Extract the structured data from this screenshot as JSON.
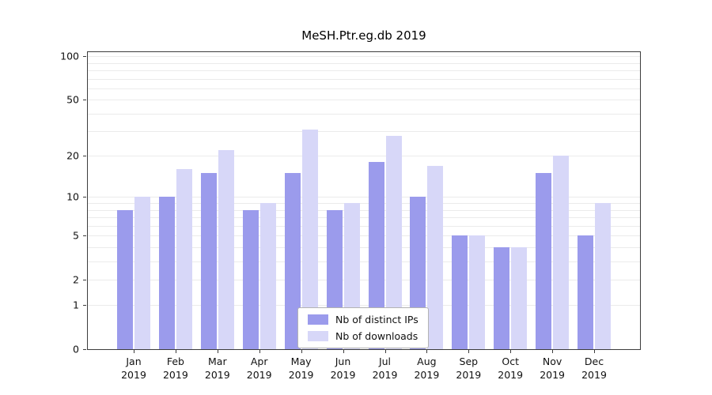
{
  "title": "MeSH.Ptr.eg.db 2019",
  "chart_data": {
    "type": "bar",
    "title": "MeSH.Ptr.eg.db 2019",
    "y_scale": "log10(1+v)",
    "grid": true,
    "legend_position": "lower center",
    "x_year": "2019",
    "categories": [
      "Jan",
      "Feb",
      "Mar",
      "Apr",
      "May",
      "Jun",
      "Jul",
      "Aug",
      "Sep",
      "Oct",
      "Nov",
      "Dec"
    ],
    "series": [
      {
        "name": "Nb of distinct IPs",
        "color": "#9b9bec",
        "values": [
          8,
          10,
          15,
          8,
          15,
          8,
          18,
          10,
          5,
          4,
          15,
          5
        ]
      },
      {
        "name": "Nb of downloads",
        "color": "#d7d7f8",
        "values": [
          10,
          16,
          22,
          9,
          31,
          9,
          28,
          17,
          5,
          4,
          20,
          9
        ]
      }
    ],
    "yticks": [
      0,
      1,
      2,
      5,
      10,
      20,
      50,
      100
    ],
    "ylim": [
      0,
      108
    ],
    "gridline_values": [
      1,
      2,
      3,
      4,
      5,
      6,
      7,
      8,
      9,
      10,
      20,
      30,
      40,
      50,
      60,
      70,
      80,
      90,
      100
    ]
  }
}
